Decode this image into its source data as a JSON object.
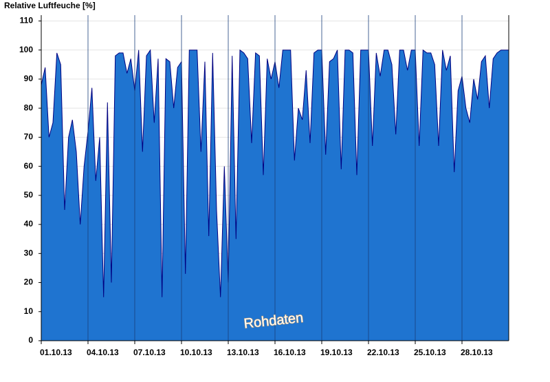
{
  "chart_data": {
    "type": "area",
    "title": "Relative Luftfeuche [%]",
    "annotation": "Rohdaten",
    "color": "#1f74d0",
    "line_color": "#000080",
    "grid": true,
    "xlim": [
      1,
      31
    ],
    "ylim": [
      0,
      112
    ],
    "yticks": [
      0,
      10,
      20,
      30,
      40,
      50,
      60,
      70,
      80,
      90,
      100,
      110
    ],
    "xticks": [
      {
        "value": 1,
        "label": "01.10.13"
      },
      {
        "value": 4,
        "label": "04.10.13"
      },
      {
        "value": 7,
        "label": "07.10.13"
      },
      {
        "value": 10,
        "label": "10.10.13"
      },
      {
        "value": 13,
        "label": "13.10.13"
      },
      {
        "value": 16,
        "label": "16.10.13"
      },
      {
        "value": 19,
        "label": "19.10.13"
      },
      {
        "value": 22,
        "label": "22.10.13"
      },
      {
        "value": 25,
        "label": "25.10.13"
      },
      {
        "value": 28,
        "label": "28.10.13"
      }
    ],
    "x": [
      1,
      1.25,
      1.5,
      1.75,
      2,
      2.25,
      2.5,
      2.75,
      3,
      3.25,
      3.5,
      3.75,
      4,
      4.25,
      4.5,
      4.75,
      5,
      5.25,
      5.5,
      5.75,
      6,
      6.25,
      6.5,
      6.75,
      7,
      7.25,
      7.5,
      7.75,
      8,
      8.25,
      8.5,
      8.75,
      9,
      9.25,
      9.5,
      9.75,
      10,
      10.25,
      10.5,
      10.75,
      11,
      11.25,
      11.5,
      11.75,
      12,
      12.25,
      12.5,
      12.75,
      13,
      13.25,
      13.5,
      13.75,
      14,
      14.25,
      14.5,
      14.75,
      15,
      15.25,
      15.5,
      15.75,
      16,
      16.25,
      16.5,
      16.75,
      17,
      17.25,
      17.5,
      17.75,
      18,
      18.25,
      18.5,
      18.75,
      19,
      19.25,
      19.5,
      19.75,
      20,
      20.25,
      20.5,
      20.75,
      21,
      21.25,
      21.5,
      21.75,
      22,
      22.25,
      22.5,
      22.75,
      23,
      23.25,
      23.5,
      23.75,
      24,
      24.25,
      24.5,
      24.75,
      25,
      25.25,
      25.5,
      25.75,
      26,
      26.25,
      26.5,
      26.75,
      27,
      27.25,
      27.5,
      27.75,
      28,
      28.25,
      28.5,
      28.75,
      29,
      29.25,
      29.5,
      29.75,
      30,
      30.25,
      30.5,
      30.75,
      31
    ],
    "values": [
      88,
      94,
      70,
      75,
      99,
      95,
      45,
      70,
      76,
      65,
      40,
      60,
      72,
      87,
      55,
      70,
      15,
      82,
      20,
      98,
      99,
      99,
      92,
      97,
      86,
      100,
      65,
      98,
      100,
      75,
      97,
      15,
      97,
      96,
      80,
      94,
      96,
      23,
      100,
      100,
      100,
      65,
      96,
      36,
      99,
      45,
      15,
      60,
      20,
      98,
      35,
      100,
      99,
      97,
      68,
      99,
      98,
      57,
      97,
      90,
      96,
      87,
      100,
      100,
      100,
      62,
      80,
      76,
      93,
      68,
      99,
      100,
      100,
      64,
      96,
      97,
      100,
      59,
      100,
      100,
      99,
      57,
      100,
      100,
      100,
      67,
      99,
      91,
      100,
      100,
      95,
      71,
      100,
      100,
      93,
      100,
      100,
      67,
      100,
      99,
      99,
      95,
      67,
      100,
      93,
      98,
      58,
      86,
      91,
      80,
      75,
      90,
      83,
      96,
      98,
      80,
      97,
      99,
      100,
      100,
      100
    ]
  }
}
